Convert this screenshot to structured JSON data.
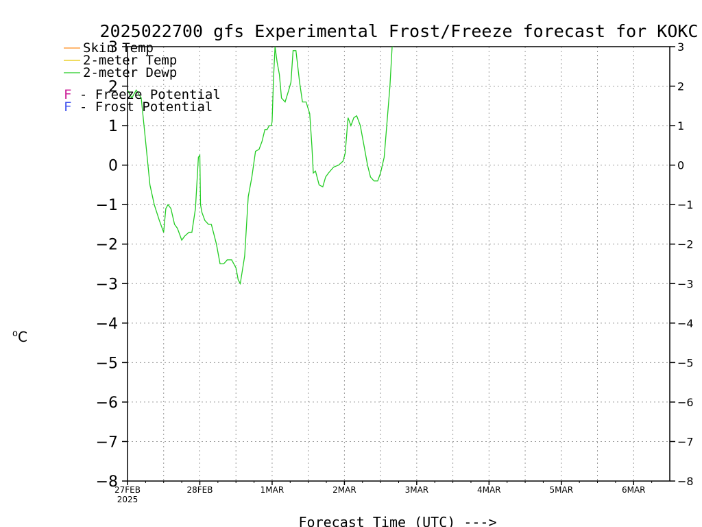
{
  "chart_data": {
    "type": "line",
    "title": "2025022700 gfs Experimental Frost/Freeze forecast for KOKC",
    "xlabel": "Forecast Time (UTC) --->",
    "ylabel": "°C",
    "ylabel_sup": "o",
    "ylabel_main": "C",
    "ylim": [
      -8,
      3
    ],
    "xlim_days": [
      0,
      7.5
    ],
    "grid": true,
    "y_ticks": [
      "−8",
      "−7",
      "−6",
      "−5",
      "−4",
      "−3",
      "−2",
      "−1",
      "0",
      "1",
      "2",
      "3"
    ],
    "y_tick_values": [
      -8,
      -7,
      -6,
      -5,
      -4,
      -3,
      -2,
      -1,
      0,
      1,
      2,
      3
    ],
    "x_ticks": [
      "27FEB",
      "28FEB",
      "1MAR",
      "2MAR",
      "3MAR",
      "4MAR",
      "5MAR",
      "6MAR"
    ],
    "x_tick_values": [
      0,
      1,
      2,
      3,
      4,
      5,
      6,
      7
    ],
    "x_year": "2025",
    "legend": {
      "placement": "top-left",
      "entries": [
        {
          "label": "Skin Temp",
          "color": "#ff8c1a"
        },
        {
          "label": "2-meter Temp",
          "color": "#e8c800"
        },
        {
          "label": "2-meter Dewp",
          "color": "#22cc22"
        }
      ],
      "potential": [
        {
          "letter": "F",
          "label": " - Freeze Potential",
          "color": "#cc2299"
        },
        {
          "letter": "F",
          "label": " - Frost Potential",
          "color": "#4455ee"
        }
      ]
    },
    "series": [
      {
        "name": "2-meter Dewp",
        "color": "#22cc22",
        "x": [
          0.0,
          0.06,
          0.12,
          0.19,
          0.25,
          0.31,
          0.37,
          0.44,
          0.5,
          0.53,
          0.56,
          0.6,
          0.65,
          0.69,
          0.75,
          0.79,
          0.85,
          0.89,
          0.94,
          0.98,
          1.0,
          1.01,
          1.03,
          1.07,
          1.12,
          1.16,
          1.23,
          1.28,
          1.33,
          1.38,
          1.44,
          1.5,
          1.53,
          1.56,
          1.62,
          1.67,
          1.72,
          1.77,
          1.82,
          1.86,
          1.9,
          1.93,
          1.96,
          1.99,
          2.0,
          2.02,
          2.04,
          2.07,
          2.1,
          2.13,
          2.18,
          2.23,
          2.26,
          2.29,
          2.33,
          2.38,
          2.42,
          2.47,
          2.52,
          2.55,
          2.57,
          2.6,
          2.65,
          2.7,
          2.74,
          2.78,
          2.85,
          2.92,
          2.98,
          3.01,
          3.05,
          3.09,
          3.13,
          3.17,
          3.22,
          3.27,
          3.32,
          3.36,
          3.41,
          3.46,
          3.5,
          3.55,
          3.59,
          3.63,
          3.66,
          3.68
        ],
        "y": [
          1.9,
          1.7,
          1.9,
          1.7,
          0.6,
          -0.5,
          -1.0,
          -1.4,
          -1.7,
          -1.1,
          -1.0,
          -1.1,
          -1.5,
          -1.6,
          -1.9,
          -1.8,
          -1.7,
          -1.7,
          -1.1,
          0.2,
          0.25,
          -1.0,
          -1.2,
          -1.4,
          -1.5,
          -1.5,
          -2.0,
          -2.5,
          -2.5,
          -2.4,
          -2.4,
          -2.6,
          -2.9,
          -3.0,
          -2.3,
          -0.8,
          -0.3,
          0.35,
          0.4,
          0.6,
          0.9,
          0.9,
          1.0,
          1.0,
          1.1,
          2.2,
          3.0,
          2.6,
          2.3,
          1.7,
          1.6,
          1.9,
          2.1,
          2.9,
          2.9,
          2.1,
          1.6,
          1.6,
          1.3,
          0.5,
          -0.2,
          -0.15,
          -0.5,
          -0.55,
          -0.3,
          -0.2,
          -0.05,
          0.0,
          0.1,
          0.3,
          1.2,
          1.0,
          1.2,
          1.25,
          1.0,
          0.5,
          0.0,
          -0.3,
          -0.4,
          -0.4,
          -0.2,
          0.2,
          1.1,
          2.0,
          3.0,
          3.0
        ]
      }
    ]
  }
}
